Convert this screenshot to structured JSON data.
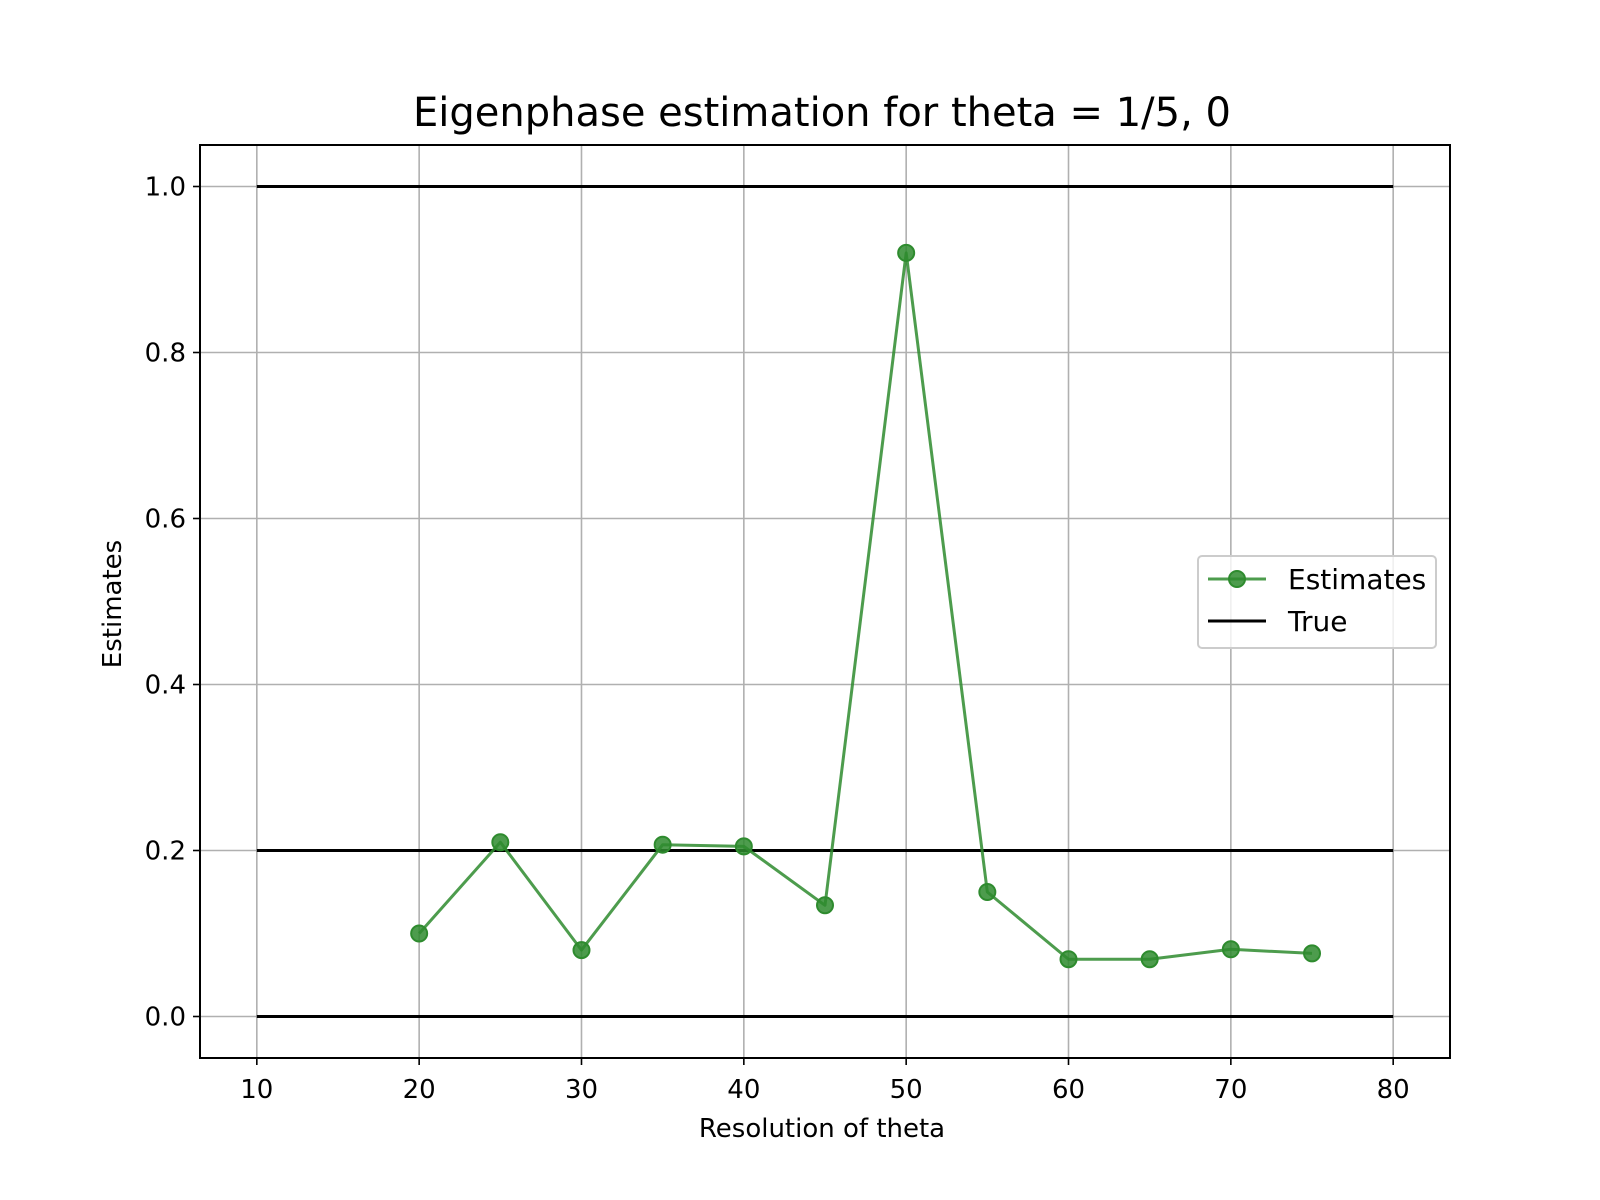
{
  "chart_data": {
    "type": "line",
    "title": "Eigenphase estimation for theta = 1/5, 0",
    "xlabel": "Resolution of theta",
    "ylabel": "Estimates",
    "xlim": [
      6.5,
      83.5
    ],
    "ylim": [
      -0.05,
      1.05
    ],
    "xticks": [
      10,
      20,
      30,
      40,
      50,
      60,
      70,
      80
    ],
    "xtick_labels": [
      "10",
      "20",
      "30",
      "40",
      "50",
      "60",
      "70",
      "80"
    ],
    "yticks": [
      0.0,
      0.2,
      0.4,
      0.6,
      0.8,
      1.0
    ],
    "ytick_labels": [
      "0.0",
      "0.2",
      "0.4",
      "0.6",
      "0.8",
      "1.0"
    ],
    "grid": true,
    "legend_position": "center-right",
    "series": [
      {
        "name": "Estimates",
        "style": "line-with-markers",
        "color": "#2e8b2e",
        "x": [
          20,
          25,
          30,
          35,
          40,
          45,
          50,
          55,
          60,
          65,
          70,
          75
        ],
        "y": [
          0.1,
          0.21,
          0.08,
          0.207,
          0.205,
          0.134,
          0.92,
          0.15,
          0.069,
          0.069,
          0.081,
          0.076
        ]
      },
      {
        "name": "True",
        "style": "line",
        "color": "#000000",
        "segments": [
          {
            "x": [
              10,
              80
            ],
            "y": [
              1.0,
              1.0
            ]
          },
          {
            "x": [
              10,
              80
            ],
            "y": [
              0.2,
              0.2
            ]
          },
          {
            "x": [
              10,
              80
            ],
            "y": [
              0.0,
              0.0
            ]
          }
        ]
      }
    ]
  }
}
